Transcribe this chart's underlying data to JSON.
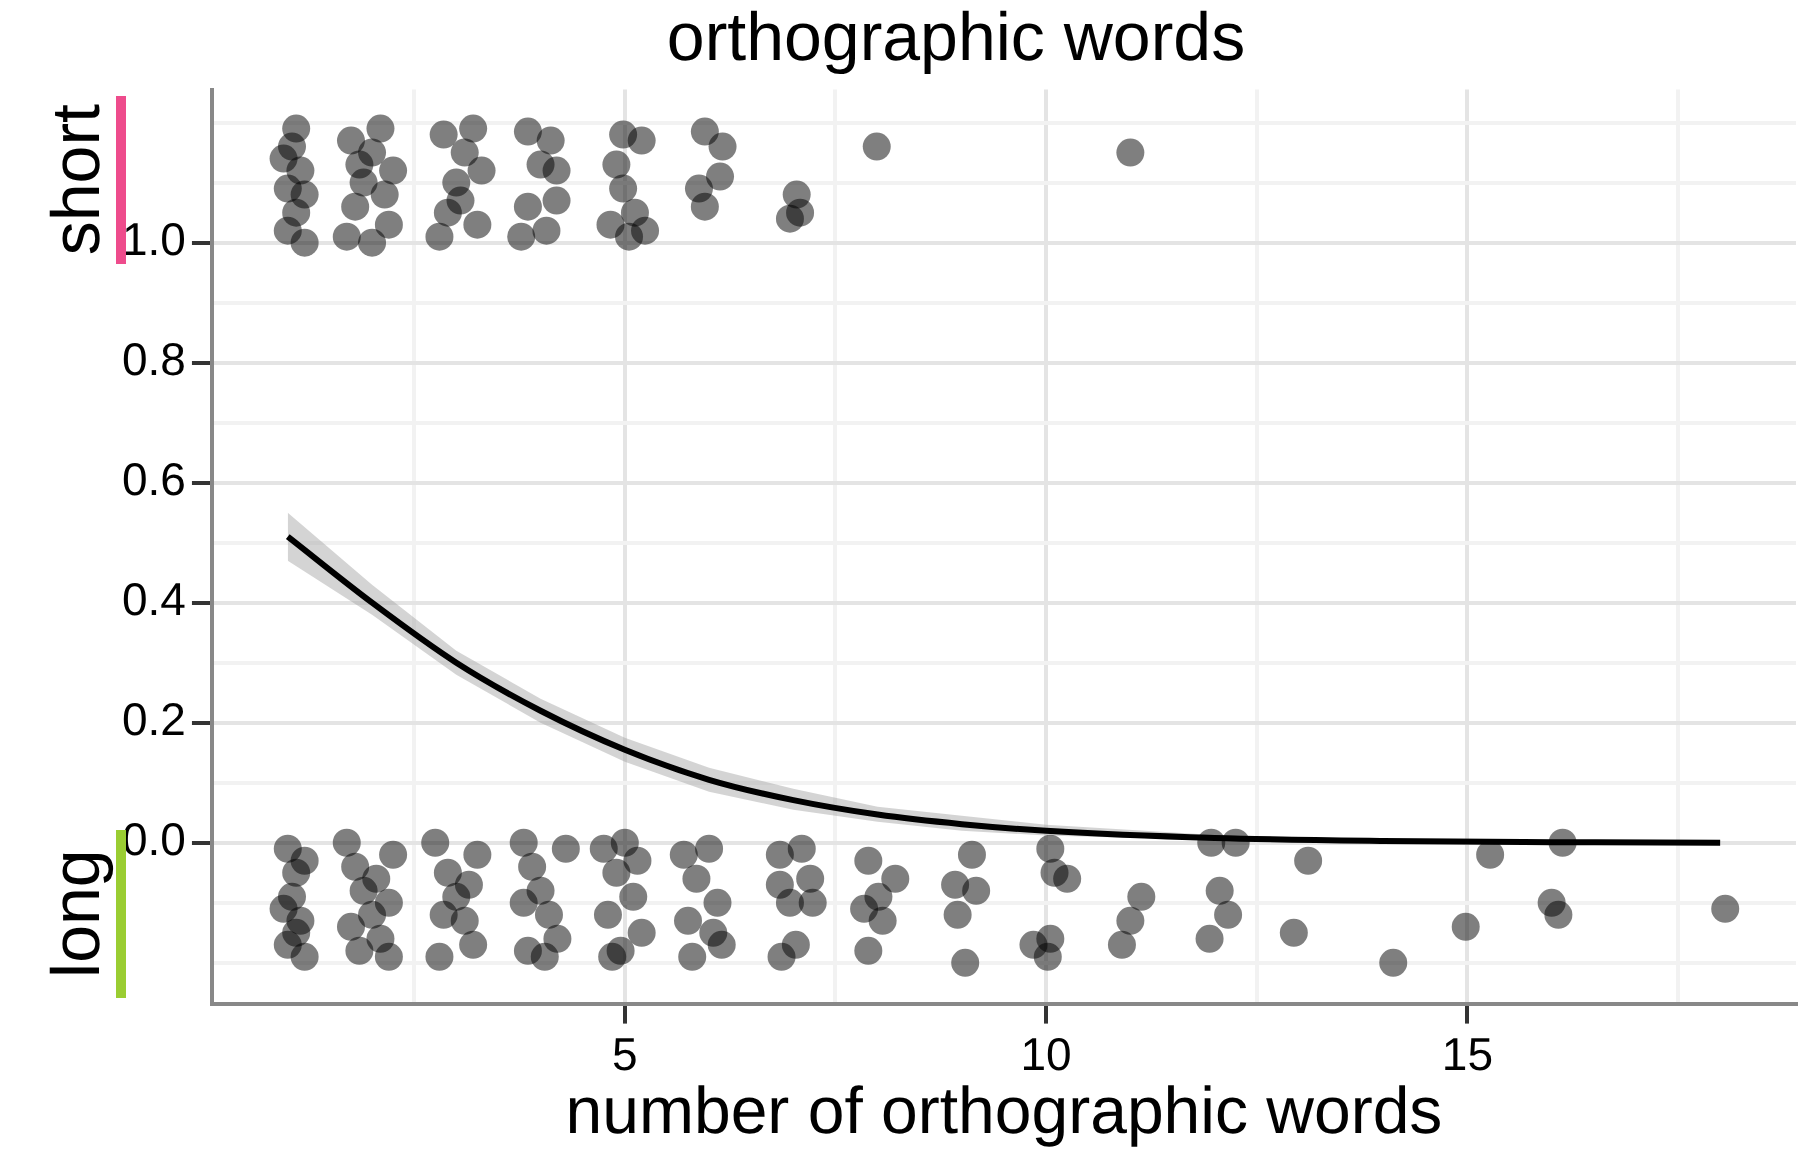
{
  "chart_data": {
    "type": "scatter",
    "title": "orthographic words",
    "xlabel": "number of orthographic words",
    "annotations": [
      "short",
      "long"
    ],
    "xlim": [
      0.1,
      18.9
    ],
    "ylim": [
      -0.268,
      1.255
    ],
    "xticks": [
      {
        "value": 2.5,
        "label": null
      },
      5,
      {
        "value": 7.5,
        "label": null
      },
      10,
      {
        "value": 12.5,
        "label": null
      },
      15,
      {
        "value": 17.5,
        "label": null
      }
    ],
    "yticks": [
      {
        "value": -0.2,
        "label": null
      },
      {
        "value": -0.1,
        "label": null
      },
      {
        "value": 0,
        "label": "0.0"
      },
      {
        "value": 0.1,
        "label": null
      },
      {
        "value": 0.2,
        "label": "0.2"
      },
      {
        "value": 0.3,
        "label": null
      },
      {
        "value": 0.4,
        "label": "0.4"
      },
      {
        "value": 0.5,
        "label": null
      },
      {
        "value": 0.6,
        "label": "0.6"
      },
      {
        "value": 0.7,
        "label": null
      },
      {
        "value": 0.8,
        "label": "0.8"
      },
      {
        "value": 0.9,
        "label": null
      },
      {
        "value": 1,
        "label": "1.0"
      },
      {
        "value": 1.1,
        "label": null
      },
      {
        "value": 1.2,
        "label": null
      }
    ],
    "grid": true,
    "legend": false,
    "marker": "circle",
    "series": [
      {
        "color": "#000000",
        "x": [
          1.0,
          1.1,
          1.0,
          1.15,
          1.05,
          1.1,
          1.2,
          0.95,
          1.2,
          1.7,
          1.8,
          1.9,
          2.0,
          2.1,
          2.2,
          2.25,
          1.75,
          2.0,
          2.15,
          1.85,
          2.8,
          2.9,
          3.0,
          3.1,
          3.2,
          2.85,
          3.25,
          3.05,
          3.3,
          3.85,
          4.12,
          4.19,
          4.0,
          3.85,
          4.19,
          3.77,
          4.07,
          4.98,
          5.2,
          4.9,
          4.98,
          4.83,
          5.24,
          5.05,
          5.12,
          5.95,
          6.16,
          5.88,
          6.13,
          5.95,
          7.04,
          6.96,
          7.08,
          7.99,
          11.0,
          1.0,
          1.1,
          1.05,
          1.15,
          1.0,
          1.2,
          0.95,
          1.2,
          1.1,
          1.7,
          1.8,
          1.9,
          2.0,
          2.1,
          2.2,
          2.25,
          1.75,
          2.05,
          2.2,
          1.85,
          2.75,
          2.9,
          3.0,
          3.1,
          3.2,
          3.25,
          2.8,
          3.15,
          2.85,
          3.8,
          3.9,
          4.0,
          4.1,
          4.2,
          3.85,
          4.3,
          3.8,
          4.05,
          4.75,
          5.0,
          4.9,
          5.1,
          4.8,
          5.2,
          4.95,
          5.15,
          4.85,
          5.7,
          6.0,
          5.85,
          6.1,
          5.75,
          6.05,
          5.8,
          6.15,
          6.84,
          7.1,
          7.2,
          6.96,
          7.23,
          7.03,
          6.86,
          6.84,
          7.89,
          8.21,
          8.01,
          7.84,
          8.06,
          7.89,
          9.12,
          8.92,
          9.17,
          8.95,
          9.04,
          10.05,
          10.1,
          10.25,
          10.05,
          10.02,
          9.85,
          11.13,
          11.0,
          10.9,
          11.96,
          12.25,
          12.06,
          12.16,
          11.94,
          13.11,
          12.94,
          14.12,
          14.98,
          15.27,
          16.0,
          16.08,
          16.13,
          18.06
        ],
        "values": [
          1.02,
          1.05,
          1.09,
          1.12,
          1.16,
          1.19,
          1.0,
          1.14,
          1.08,
          1.01,
          1.06,
          1.1,
          1.15,
          1.19,
          1.03,
          1.12,
          1.17,
          1.0,
          1.08,
          1.13,
          1.01,
          1.05,
          1.1,
          1.15,
          1.19,
          1.18,
          1.03,
          1.07,
          1.12,
          1.185,
          1.17,
          1.12,
          1.13,
          1.06,
          1.07,
          1.01,
          1.02,
          1.18,
          1.17,
          1.13,
          1.09,
          1.03,
          1.02,
          1.01,
          1.05,
          1.185,
          1.16,
          1.09,
          1.11,
          1.06,
          1.08,
          1.04,
          1.05,
          1.16,
          1.15,
          -0.01,
          -0.05,
          -0.09,
          -0.13,
          -0.17,
          -0.19,
          -0.11,
          -0.03,
          -0.15,
          0.0,
          -0.04,
          -0.08,
          -0.12,
          -0.16,
          -0.19,
          -0.02,
          -0.14,
          -0.06,
          -0.1,
          -0.18,
          0.0,
          -0.05,
          -0.09,
          -0.13,
          -0.17,
          -0.02,
          -0.19,
          -0.07,
          -0.12,
          0.0,
          -0.04,
          -0.08,
          -0.12,
          -0.16,
          -0.18,
          -0.01,
          -0.1,
          -0.19,
          -0.01,
          0.0,
          -0.05,
          -0.09,
          -0.12,
          -0.15,
          -0.18,
          -0.03,
          -0.19,
          -0.02,
          -0.01,
          -0.06,
          -0.1,
          -0.13,
          -0.15,
          -0.19,
          -0.17,
          -0.02,
          -0.01,
          -0.06,
          -0.1,
          -0.1,
          -0.17,
          -0.19,
          -0.07,
          -0.03,
          -0.06,
          -0.09,
          -0.11,
          -0.13,
          -0.18,
          -0.02,
          -0.07,
          -0.08,
          -0.12,
          -0.2,
          -0.01,
          -0.05,
          -0.06,
          -0.16,
          -0.19,
          -0.17,
          -0.09,
          -0.13,
          -0.17,
          0.0,
          0.0,
          -0.08,
          -0.12,
          -0.16,
          -0.03,
          -0.15,
          -0.2,
          -0.14,
          -0.02,
          -0.1,
          -0.12,
          0.0,
          -0.11
        ]
      },
      {
        "type": "line",
        "color": "#000000",
        "marker": "none",
        "x": [
          1,
          2,
          3,
          4,
          5,
          6,
          7,
          8,
          9,
          10,
          12,
          14,
          16,
          18
        ],
        "values": [
          0.51,
          0.4,
          0.3,
          0.22,
          0.155,
          0.105,
          0.071,
          0.047,
          0.031,
          0.02,
          0.008,
          0.003,
          0.001,
          0.0
        ],
        "lower": [
          0.47,
          0.38,
          0.28,
          0.2,
          0.135,
          0.085,
          0.055,
          0.035,
          0.02,
          0.012,
          0.004,
          0.001,
          0.0,
          0.0
        ],
        "upper": [
          0.55,
          0.43,
          0.32,
          0.24,
          0.175,
          0.125,
          0.09,
          0.06,
          0.045,
          0.03,
          0.013,
          0.006,
          0.003,
          0.001
        ]
      }
    ]
  }
}
